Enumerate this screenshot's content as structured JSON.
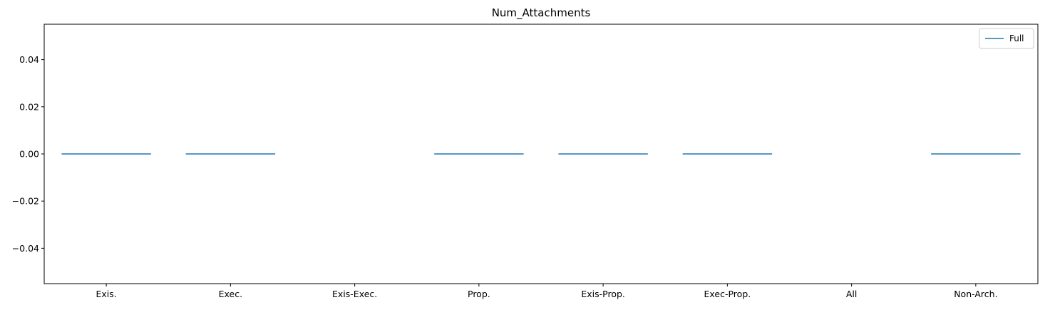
{
  "chart_data": {
    "type": "violin",
    "title": "Num_Attachments",
    "xlabel": "",
    "ylabel": "",
    "categories": [
      "Exis.",
      "Exec.",
      "Exis-Exec.",
      "Prop.",
      "Exis-Prop.",
      "Exec-Prop.",
      "All",
      "Non-Arch."
    ],
    "series": [
      {
        "name": "Full",
        "color": "#1f77b4",
        "values": [
          0,
          0,
          null,
          0,
          0,
          0,
          null,
          0
        ]
      }
    ],
    "ylim": [
      -0.055,
      0.055
    ],
    "yticks": [
      -0.04,
      -0.02,
      0.0,
      0.02,
      0.04
    ],
    "ytick_labels": [
      "−0.04",
      "−0.02",
      "0.00",
      "0.02",
      "0.04"
    ],
    "grid": false,
    "legend_position": "top-right"
  }
}
